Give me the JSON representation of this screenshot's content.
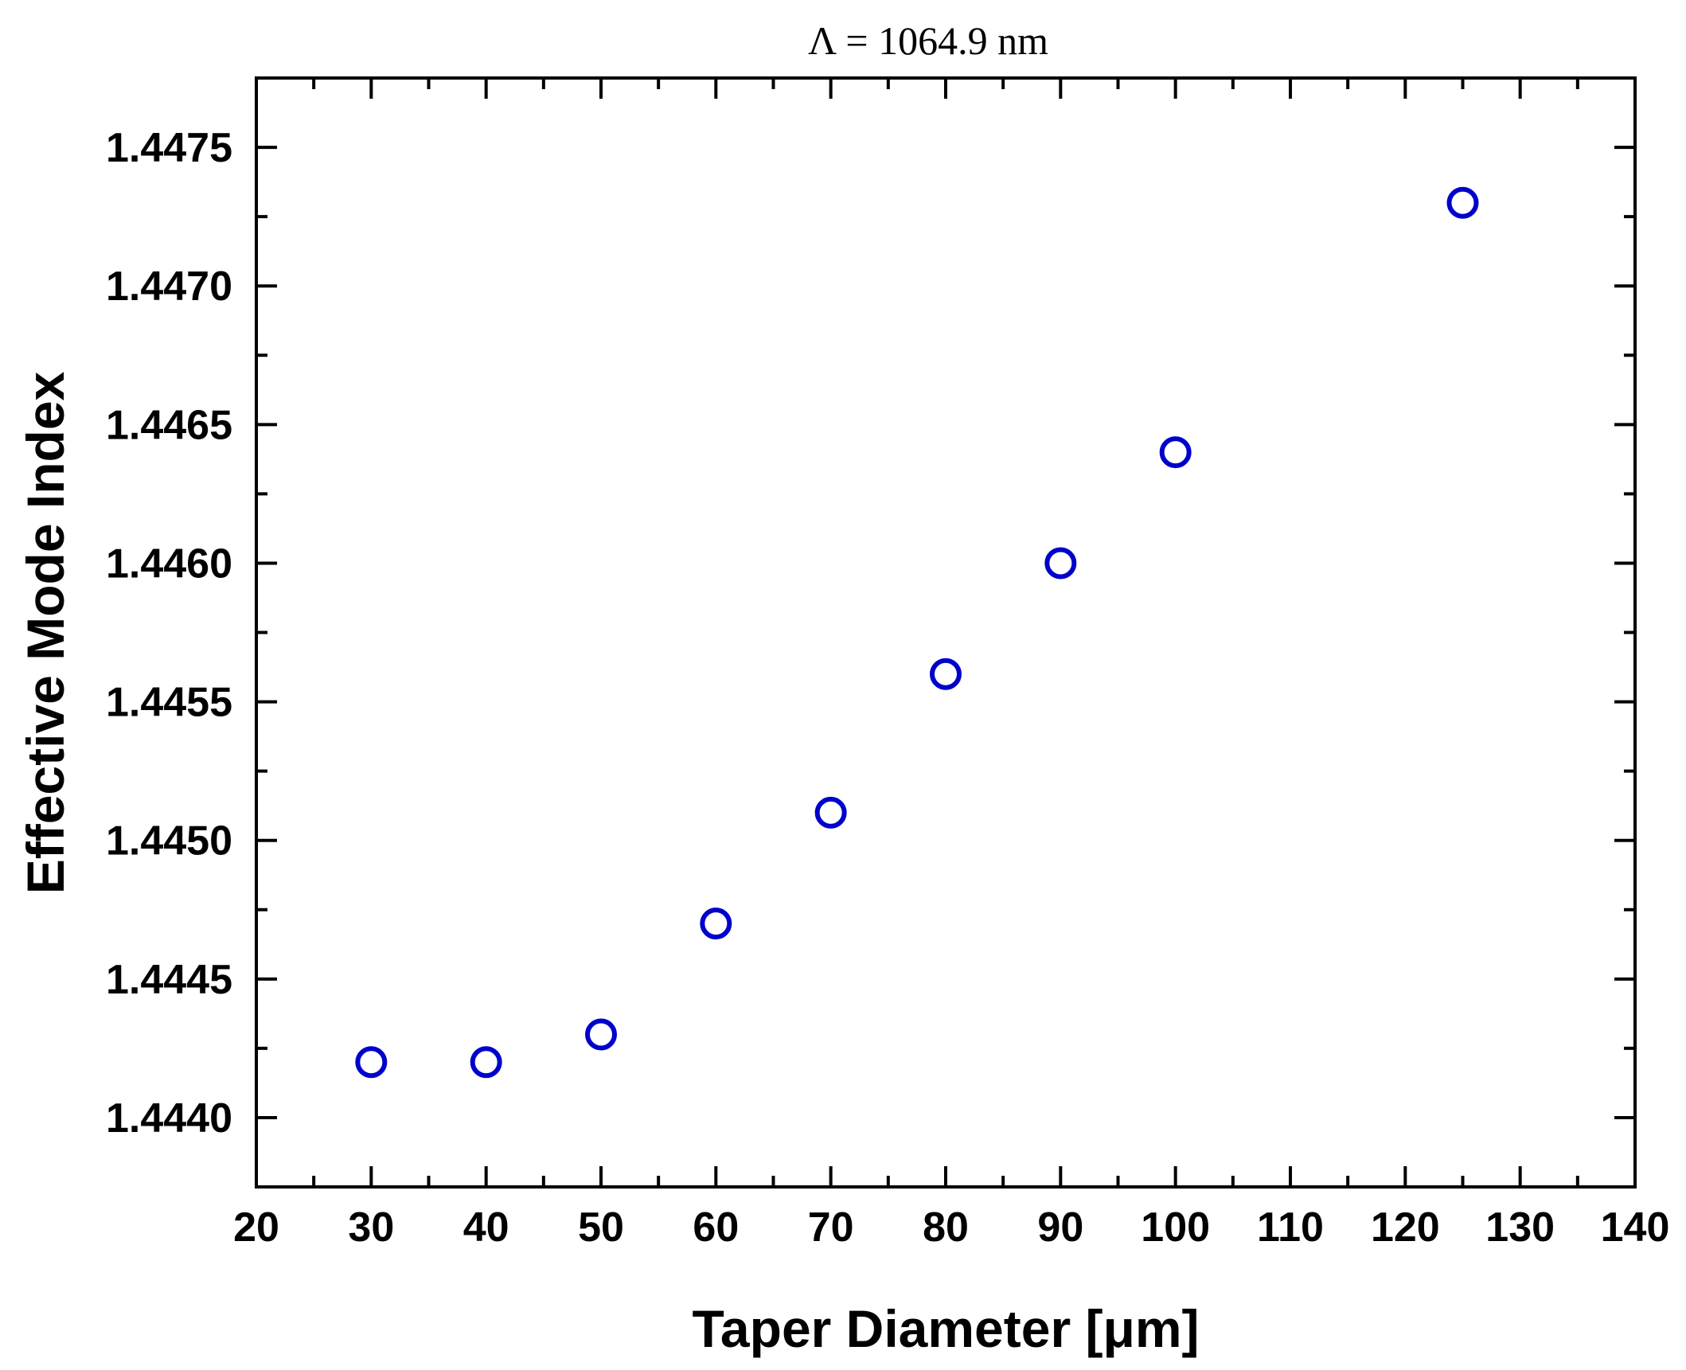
{
  "chart_data": {
    "type": "scatter",
    "title": "Λ = 1064.9 nm",
    "xlabel": "Taper Diameter [μm]",
    "ylabel": "Effective Mode Index",
    "xlim": [
      20,
      140
    ],
    "ylim": [
      1.44375,
      1.44775
    ],
    "x_ticks": [
      20,
      30,
      40,
      50,
      60,
      70,
      80,
      90,
      100,
      110,
      120,
      130,
      140
    ],
    "y_ticks": [
      1.444,
      1.4445,
      1.445,
      1.4455,
      1.446,
      1.4465,
      1.447,
      1.4475
    ],
    "x_tick_labels": [
      "20",
      "30",
      "40",
      "50",
      "60",
      "70",
      "80",
      "90",
      "100",
      "110",
      "120",
      "130",
      "140"
    ],
    "y_tick_labels": [
      "1.4440",
      "1.4445",
      "1.4450",
      "1.4455",
      "1.4460",
      "1.4465",
      "1.4470",
      "1.4475"
    ],
    "grid": false,
    "series": [
      {
        "marker": "open-circle",
        "color": "#0000cc",
        "x": [
          30,
          40,
          50,
          60,
          70,
          80,
          90,
          100,
          125
        ],
        "y": [
          1.4442,
          1.4442,
          1.4443,
          1.4447,
          1.4451,
          1.4456,
          1.446,
          1.4464,
          1.4473
        ]
      }
    ]
  }
}
